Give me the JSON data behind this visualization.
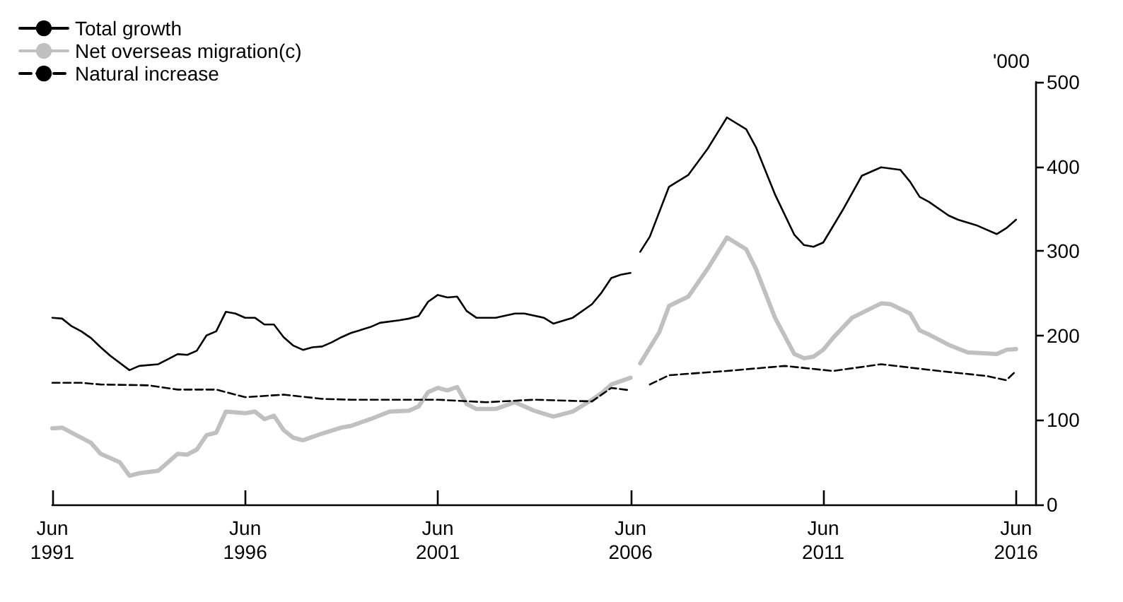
{
  "chart_data": {
    "type": "line",
    "ylabel": "'000",
    "legend": "top left",
    "marker": "none",
    "grid": false,
    "xlim": [
      "1991-06",
      "2016-12"
    ],
    "xticks": [
      {
        "value": "1991-06",
        "label": "Jun\n1991"
      },
      {
        "value": "1996-06",
        "label": "Jun\n1996"
      },
      {
        "value": "2001-06",
        "label": "Jun\n2001"
      },
      {
        "value": "2006-06",
        "label": "Jun\n2006"
      },
      {
        "value": "2011-06",
        "label": "Jun\n2011"
      },
      {
        "value": "2016-06",
        "label": "Jun\n2016"
      }
    ],
    "ylim": [
      0,
      500
    ],
    "yticks": [
      0,
      100,
      200,
      300,
      400,
      500
    ],
    "series": [
      {
        "name": "Total growth",
        "color": "#000000",
        "line_style": "solid",
        "x": [
          "1991-06",
          "1991-09",
          "1991-12",
          "1992-03",
          "1992-06",
          "1992-09",
          "1992-12",
          "1993-06",
          "1993-09",
          "1994-03",
          "1994-06",
          "1994-09",
          "1994-12",
          "1995-03",
          "1995-06",
          "1995-09",
          "1995-12",
          "1996-03",
          "1996-06",
          "1996-09",
          "1996-12",
          "1997-03",
          "1997-06",
          "1997-09",
          "1997-12",
          "1998-03",
          "1998-06",
          "1998-09",
          "1998-12",
          "1999-03",
          "1999-09",
          "1999-12",
          "2000-06",
          "2000-09",
          "2000-12",
          "2001-03",
          "2001-06",
          "2001-09",
          "2001-12",
          "2002-03",
          "2002-06",
          "2002-12",
          "2003-06",
          "2003-09",
          "2004-03",
          "2004-06",
          "2004-12",
          "2005-06",
          "2005-09",
          "2005-12",
          "2006-03",
          "2006-06",
          "2006-08",
          "2006-09",
          "2006-12",
          "2007-06",
          "2007-12",
          "2008-06",
          "2008-12",
          "2009-06",
          "2009-09",
          "2010-03",
          "2010-09",
          "2010-12",
          "2011-03",
          "2011-06",
          "2011-12",
          "2012-06",
          "2012-12",
          "2013-06",
          "2013-09",
          "2013-12",
          "2014-03",
          "2014-09",
          "2014-12",
          "2015-06",
          "2015-12",
          "2016-03",
          "2016-06"
        ],
        "values": [
          221,
          220,
          211,
          205,
          197,
          186,
          176,
          159,
          164,
          166,
          172,
          178,
          177,
          182,
          200,
          205,
          228,
          226,
          221,
          221,
          213,
          213,
          198,
          188,
          183,
          186,
          187,
          192,
          198,
          203,
          210,
          215,
          218,
          220,
          223,
          240,
          248,
          245,
          246,
          229,
          221,
          221,
          226,
          226,
          221,
          214,
          221,
          237,
          251,
          268,
          272,
          274,
          null,
          299,
          317,
          376,
          390,
          421,
          458,
          444,
          423,
          367,
          319,
          307,
          305,
          310,
          348,
          389,
          399,
          396,
          382,
          364,
          358,
          342,
          337,
          330,
          320,
          327,
          337
        ]
      },
      {
        "name": "Net overseas migration(c)",
        "color": "#c0c0c0",
        "line_style": "solid",
        "x": [
          "1991-06",
          "1991-09",
          "1991-12",
          "1992-06",
          "1992-09",
          "1993-03",
          "1993-06",
          "1993-09",
          "1994-03",
          "1994-09",
          "1994-12",
          "1995-03",
          "1995-06",
          "1995-09",
          "1995-12",
          "1996-06",
          "1996-09",
          "1996-12",
          "1997-03",
          "1997-06",
          "1997-09",
          "1997-12",
          "1998-03",
          "1998-06",
          "1998-12",
          "1999-03",
          "1999-09",
          "2000-03",
          "2000-09",
          "2000-12",
          "2001-03",
          "2001-06",
          "2001-09",
          "2001-12",
          "2002-03",
          "2002-06",
          "2002-12",
          "2003-06",
          "2003-12",
          "2004-06",
          "2004-12",
          "2005-06",
          "2005-09",
          "2005-12",
          "2006-06",
          "2006-08",
          "2006-09",
          "2007-03",
          "2007-06",
          "2007-12",
          "2008-06",
          "2008-12",
          "2009-06",
          "2009-09",
          "2010-03",
          "2010-09",
          "2010-12",
          "2011-03",
          "2011-06",
          "2011-09",
          "2012-03",
          "2012-12",
          "2013-03",
          "2013-09",
          "2013-12",
          "2014-03",
          "2014-09",
          "2015-03",
          "2015-12",
          "2016-03",
          "2016-06"
        ],
        "values": [
          90,
          91,
          85,
          73,
          60,
          50,
          34,
          37,
          40,
          60,
          59,
          65,
          82,
          85,
          110,
          108,
          110,
          101,
          105,
          88,
          79,
          76,
          80,
          84,
          91,
          93,
          101,
          110,
          111,
          116,
          133,
          138,
          135,
          139,
          119,
          113,
          113,
          121,
          111,
          104,
          110,
          124,
          132,
          142,
          150,
          null,
          167,
          204,
          235,
          246,
          279,
          316,
          302,
          279,
          221,
          178,
          173,
          175,
          183,
          197,
          221,
          238,
          237,
          226,
          206,
          201,
          189,
          180,
          178,
          183,
          184
        ]
      },
      {
        "name": "Natural increase",
        "color": "#000000",
        "line_style": "dashed",
        "x": [
          "1991-06",
          "1992-03",
          "1992-09",
          "1993-12",
          "1994-09",
          "1995-09",
          "1996-06",
          "1997-06",
          "1998-06",
          "1999-03",
          "2001-06",
          "2002-09",
          "2003-12",
          "2005-06",
          "2005-12",
          "2006-06",
          "2006-08",
          "2006-12",
          "2007-06",
          "2008-12",
          "2010-06",
          "2011-09",
          "2012-12",
          "2014-06",
          "2015-09",
          "2016-03",
          "2016-06"
        ],
        "values": [
          144,
          144,
          142,
          141,
          136,
          136,
          127,
          130,
          125,
          124,
          124,
          121,
          124,
          122,
          138,
          135,
          null,
          142,
          153,
          158,
          164,
          158,
          166,
          158,
          152,
          147,
          158
        ]
      }
    ]
  }
}
